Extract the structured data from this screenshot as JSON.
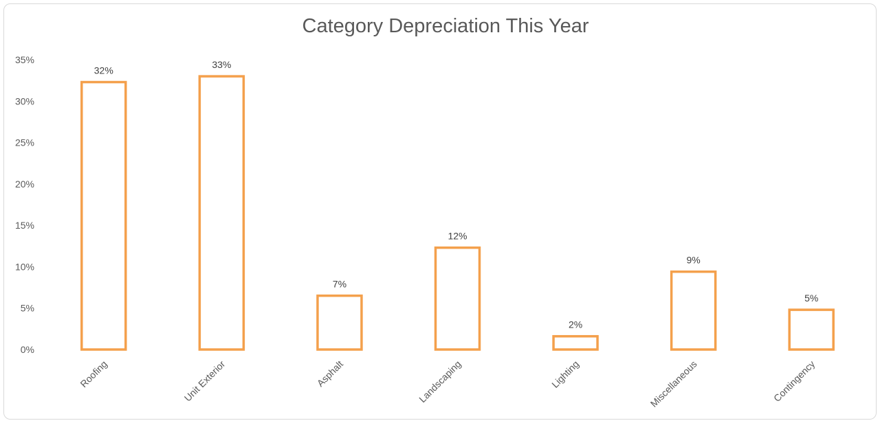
{
  "chart_data": {
    "type": "bar",
    "title": "Category Depreciation This Year",
    "xlabel": "",
    "ylabel": "",
    "categories": [
      "Roofing",
      "Unit Exterior",
      "Asphalt",
      "Landscaping",
      "Lighting",
      "Miscellaneous",
      "Contingency"
    ],
    "values": [
      32.3,
      33.0,
      6.5,
      12.3,
      1.6,
      9.4,
      4.8
    ],
    "data_labels": [
      "32%",
      "33%",
      "7%",
      "12%",
      "2%",
      "9%",
      "5%"
    ],
    "ylim": [
      0,
      35
    ],
    "y_ticks": [
      0,
      5,
      10,
      15,
      20,
      25,
      30,
      35
    ],
    "y_tick_labels": [
      "0%",
      "5%",
      "10%",
      "15%",
      "20%",
      "25%",
      "30%",
      "35%"
    ],
    "grid": false,
    "legend": "none",
    "bar_style": "outline",
    "bar_color": "#F4A04C"
  }
}
